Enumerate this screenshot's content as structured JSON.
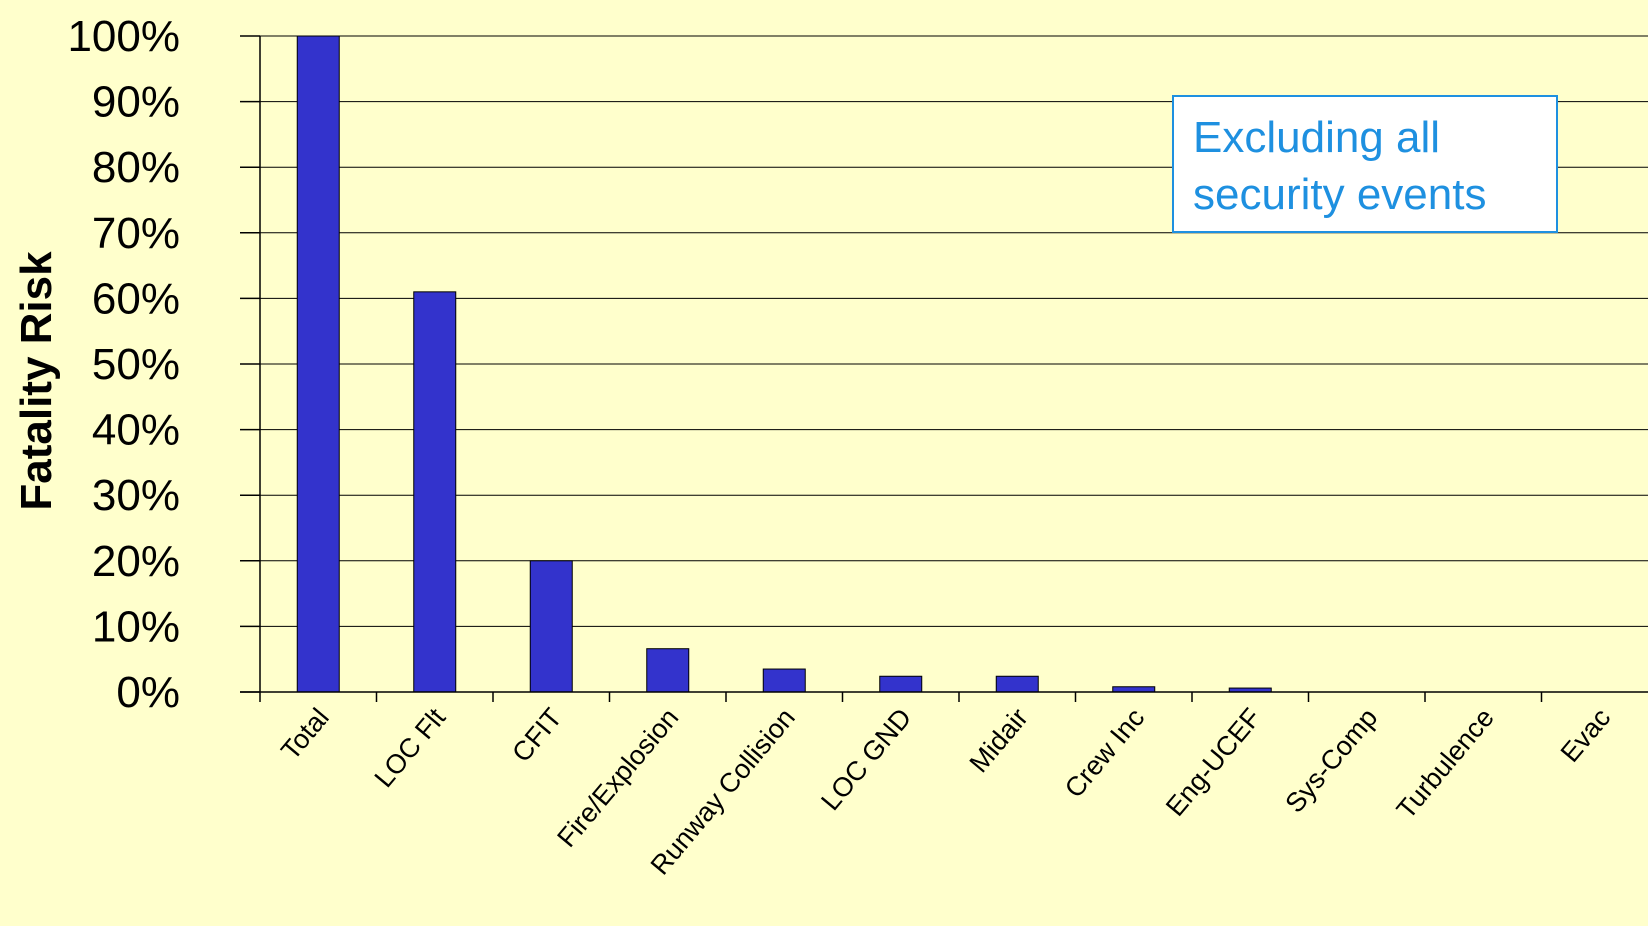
{
  "chart_data": {
    "type": "bar",
    "title": "",
    "xlabel": "",
    "ylabel": "Fatality Risk",
    "ylim": [
      0,
      100
    ],
    "yticks": [
      "0%",
      "10%",
      "20%",
      "30%",
      "40%",
      "50%",
      "60%",
      "70%",
      "80%",
      "90%",
      "100%"
    ],
    "grid": true,
    "categories": [
      "Total",
      "LOC Flt",
      "CFIT",
      "Fire/Explosion",
      "Runway Collision",
      "LOC GND",
      "Midair",
      "Crew Inc",
      "Eng-UCEF",
      "Sys-Comp",
      "Turbulence",
      "Evac"
    ],
    "values": [
      100,
      61,
      20,
      6.6,
      3.5,
      2.4,
      2.4,
      0.8,
      0.6,
      0,
      0,
      0
    ],
    "annotation": [
      "Excluding all",
      "security events"
    ]
  },
  "colors": {
    "background": "#FFFFCC",
    "bar": "#3333CC",
    "bar_outline": "#000000",
    "grid": "#000000",
    "annotation_text": "#1E90E0",
    "annotation_border": "#1E90E0",
    "annotation_fill": "#FFFFFF"
  }
}
